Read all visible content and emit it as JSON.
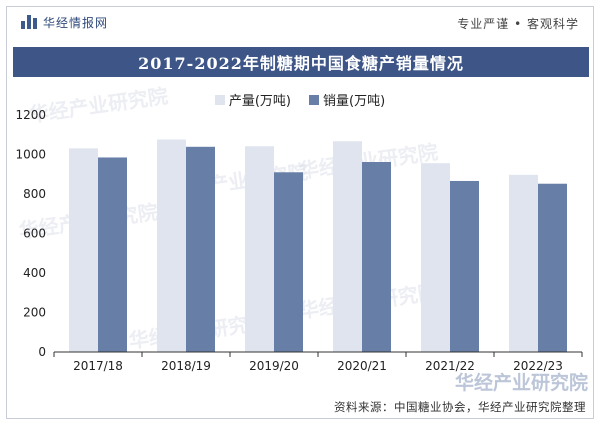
{
  "header": {
    "brand": "华经情报网",
    "slogan": "专业严谨 • 客观科学"
  },
  "chart_data": {
    "type": "bar",
    "title": "2017-2022年制糖期中国食糖产销量情况",
    "categories": [
      "2017/18",
      "2018/19",
      "2019/20",
      "2020/21",
      "2021/22",
      "2022/23"
    ],
    "series": [
      {
        "name": "产量(万吨)",
        "values": [
          1031,
          1076,
          1042,
          1067,
          956,
          897
        ],
        "color": "#dfe4ee"
      },
      {
        "name": "销量(万吨)",
        "values": [
          985,
          1039,
          910,
          962,
          866,
          852
        ],
        "color": "#677ea6"
      }
    ],
    "ylim": [
      0,
      1200
    ],
    "yticks": [
      0,
      200,
      400,
      600,
      800,
      1000,
      1200
    ],
    "xlabel": "",
    "ylabel": "",
    "legend": "top-center",
    "grid": false
  },
  "footer": {
    "source": "资料来源：中国糖业协会，华经产业研究院整理",
    "watermark": "华经产业研究院"
  }
}
